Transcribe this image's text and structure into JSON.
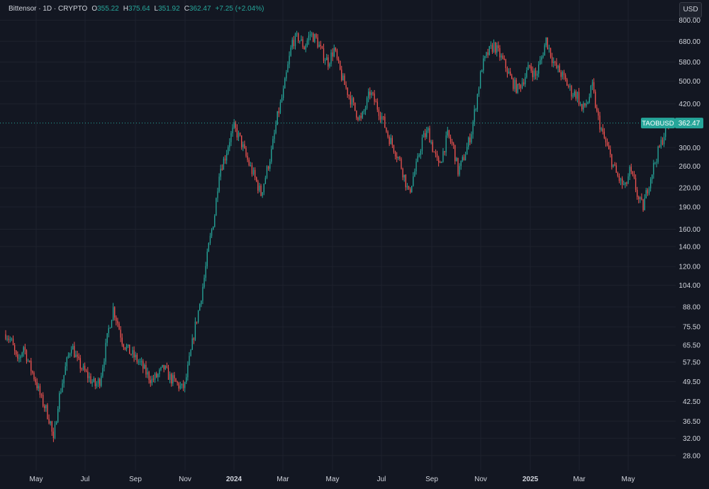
{
  "header": {
    "symbol": "Bittensor · 1D · CRYPTO",
    "open_label": "O",
    "open": "355.22",
    "high_label": "H",
    "high": "375.64",
    "low_label": "L",
    "low": "351.92",
    "close_label": "C",
    "close": "362.47",
    "change": "+7.25 (+2.04%)"
  },
  "currency_button": "USD",
  "colors": {
    "up": "#26a69a",
    "down": "#ef5350",
    "background": "#131722",
    "grid": "#1e222d",
    "text": "#d1d4dc"
  },
  "chart_data": {
    "type": "candlestick",
    "title": "",
    "xlabel": "",
    "ylabel": "",
    "y_scale": "log",
    "ylim": [
      25.5,
      820
    ],
    "y_ticks": [
      {
        "value": 800,
        "label": "800.00"
      },
      {
        "value": 680,
        "label": "680.00"
      },
      {
        "value": 580,
        "label": "580.00"
      },
      {
        "value": 500,
        "label": "500.00"
      },
      {
        "value": 420,
        "label": "420.00"
      },
      {
        "value": 300,
        "label": "300.00"
      },
      {
        "value": 260,
        "label": "260.00"
      },
      {
        "value": 220,
        "label": "220.00"
      },
      {
        "value": 190,
        "label": "190.00"
      },
      {
        "value": 160,
        "label": "160.00"
      },
      {
        "value": 140,
        "label": "140.00"
      },
      {
        "value": 120,
        "label": "120.00"
      },
      {
        "value": 104,
        "label": "104.00"
      },
      {
        "value": 88,
        "label": "88.00"
      },
      {
        "value": 75.5,
        "label": "75.50"
      },
      {
        "value": 65.5,
        "label": "65.50"
      },
      {
        "value": 57.5,
        "label": "57.50"
      },
      {
        "value": 49.5,
        "label": "49.50"
      },
      {
        "value": 42.5,
        "label": "42.50"
      },
      {
        "value": 36.5,
        "label": "36.50"
      },
      {
        "value": 32,
        "label": "32.00"
      },
      {
        "value": 28,
        "label": "28.00"
      }
    ],
    "x_ticks": [
      "May",
      "Jul",
      "Sep",
      "Nov",
      "2024",
      "Mar",
      "May",
      "Jul",
      "Sep",
      "Nov",
      "2025",
      "Mar",
      "May"
    ],
    "price_label": {
      "symbol": "TAOBUSD",
      "value": "362.47",
      "price": 362.47
    },
    "close_path": [
      [
        0,
        72
      ],
      [
        4,
        67
      ],
      [
        8,
        57
      ],
      [
        12,
        65
      ],
      [
        16,
        56
      ],
      [
        20,
        50
      ],
      [
        24,
        43
      ],
      [
        27,
        40
      ],
      [
        30,
        36
      ],
      [
        32,
        31
      ],
      [
        35,
        42
      ],
      [
        40,
        55
      ],
      [
        44,
        66
      ],
      [
        48,
        58
      ],
      [
        52,
        54
      ],
      [
        56,
        51
      ],
      [
        60,
        48
      ],
      [
        63,
        50
      ],
      [
        66,
        60
      ],
      [
        69,
        74
      ],
      [
        72,
        87
      ],
      [
        75,
        78
      ],
      [
        78,
        68
      ],
      [
        82,
        63
      ],
      [
        86,
        60
      ],
      [
        90,
        57
      ],
      [
        94,
        53
      ],
      [
        98,
        50
      ],
      [
        102,
        52
      ],
      [
        106,
        55
      ],
      [
        110,
        51
      ],
      [
        114,
        49
      ],
      [
        118,
        47
      ],
      [
        120,
        48
      ],
      [
        124,
        62
      ],
      [
        127,
        76
      ],
      [
        130,
        90
      ],
      [
        133,
        110
      ],
      [
        136,
        140
      ],
      [
        140,
        180
      ],
      [
        143,
        250
      ],
      [
        147,
        280
      ],
      [
        150,
        320
      ],
      [
        153,
        350
      ],
      [
        157,
        320
      ],
      [
        161,
        280
      ],
      [
        165,
        250
      ],
      [
        168,
        230
      ],
      [
        171,
        210
      ],
      [
        174,
        240
      ],
      [
        178,
        290
      ],
      [
        182,
        380
      ],
      [
        186,
        460
      ],
      [
        189,
        560
      ],
      [
        192,
        680
      ],
      [
        196,
        700
      ],
      [
        200,
        650
      ],
      [
        204,
        720
      ],
      [
        208,
        690
      ],
      [
        212,
        620
      ],
      [
        216,
        580
      ],
      [
        220,
        640
      ],
      [
        223,
        560
      ],
      [
        226,
        500
      ],
      [
        230,
        450
      ],
      [
        234,
        400
      ],
      [
        238,
        370
      ],
      [
        241,
        410
      ],
      [
        244,
        460
      ],
      [
        248,
        420
      ],
      [
        252,
        380
      ],
      [
        256,
        330
      ],
      [
        260,
        300
      ],
      [
        264,
        270
      ],
      [
        267,
        240
      ],
      [
        270,
        210
      ],
      [
        273,
        240
      ],
      [
        276,
        270
      ],
      [
        279,
        320
      ],
      [
        283,
        340
      ],
      [
        286,
        300
      ],
      [
        290,
        260
      ],
      [
        293,
        290
      ],
      [
        296,
        330
      ],
      [
        300,
        300
      ],
      [
        303,
        250
      ],
      [
        306,
        270
      ],
      [
        309,
        300
      ],
      [
        312,
        340
      ],
      [
        315,
        420
      ],
      [
        319,
        560
      ],
      [
        323,
        620
      ],
      [
        327,
        660
      ],
      [
        331,
        610
      ],
      [
        335,
        560
      ],
      [
        339,
        500
      ],
      [
        343,
        470
      ],
      [
        347,
        510
      ],
      [
        351,
        560
      ],
      [
        355,
        520
      ],
      [
        359,
        600
      ],
      [
        362,
        690
      ],
      [
        365,
        620
      ],
      [
        368,
        560
      ],
      [
        371,
        540
      ],
      [
        375,
        500
      ],
      [
        379,
        460
      ],
      [
        383,
        450
      ],
      [
        386,
        400
      ],
      [
        390,
        430
      ],
      [
        393,
        480
      ],
      [
        396,
        390
      ],
      [
        400,
        330
      ],
      [
        403,
        300
      ],
      [
        406,
        270
      ],
      [
        409,
        245
      ],
      [
        412,
        230
      ],
      [
        415,
        220
      ],
      [
        418,
        250
      ],
      [
        421,
        230
      ],
      [
        424,
        200
      ],
      [
        427,
        190
      ],
      [
        430,
        220
      ],
      [
        433,
        250
      ],
      [
        436,
        280
      ],
      [
        439,
        310
      ],
      [
        442,
        345
      ],
      [
        445,
        362.47
      ]
    ]
  }
}
